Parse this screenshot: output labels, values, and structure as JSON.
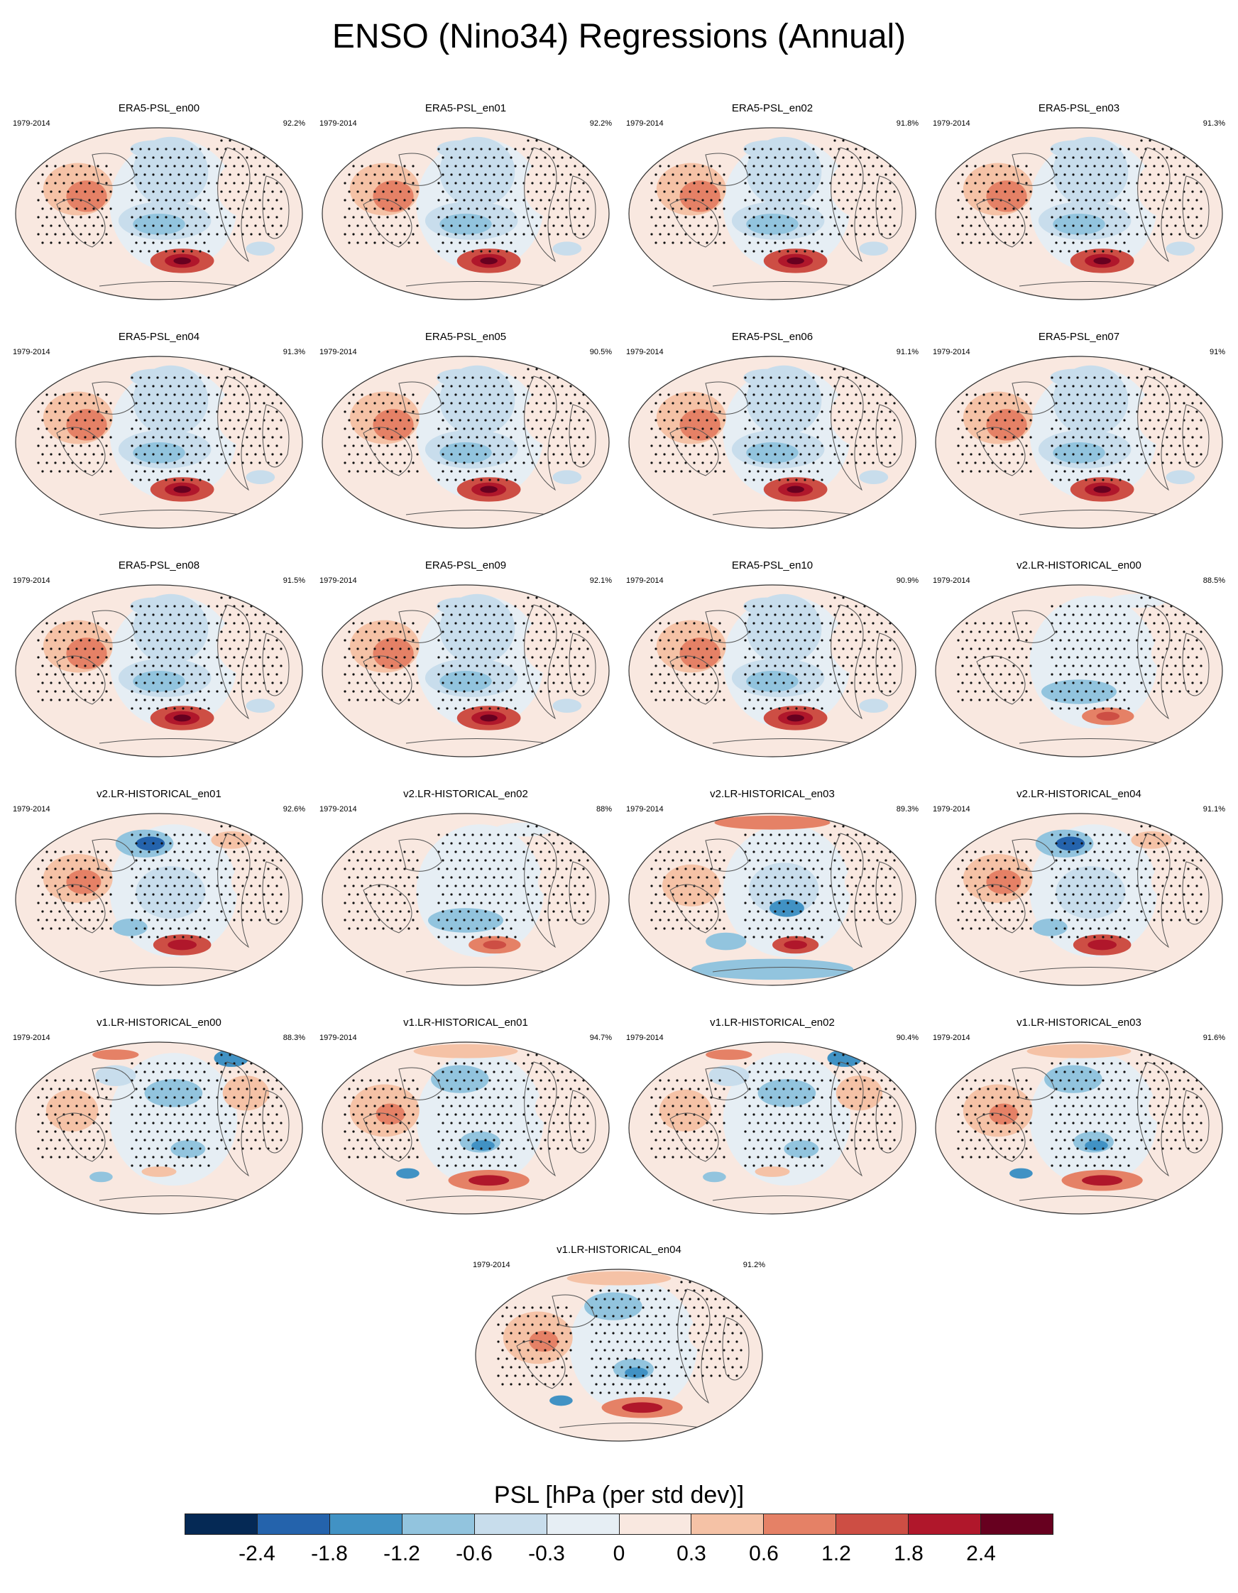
{
  "title": "ENSO (Nino34) Regressions (Annual)",
  "colorbar": {
    "title": "PSL [hPa (per std dev)]",
    "colors": [
      "#052955",
      "#2463ac",
      "#4192c4",
      "#92c4de",
      "#c8ddec",
      "#e6eef4",
      "#f9e8e0",
      "#f5c2a6",
      "#e58166",
      "#cd4e44",
      "#b0172b",
      "#67001f"
    ],
    "labels": [
      "-2.4",
      "-1.8",
      "-1.2",
      "-0.6",
      "-0.3",
      "0",
      "0.3",
      "0.6",
      "1.2",
      "1.8",
      "2.4"
    ]
  },
  "panels": [
    {
      "title": "ERA5-PSL_en00",
      "period": "1979-2014",
      "pct": "92.2%",
      "style": "era"
    },
    {
      "title": "ERA5-PSL_en01",
      "period": "1979-2014",
      "pct": "92.2%",
      "style": "era"
    },
    {
      "title": "ERA5-PSL_en02",
      "period": "1979-2014",
      "pct": "91.8%",
      "style": "era"
    },
    {
      "title": "ERA5-PSL_en03",
      "period": "1979-2014",
      "pct": "91.3%",
      "style": "era"
    },
    {
      "title": "ERA5-PSL_en04",
      "period": "1979-2014",
      "pct": "91.3%",
      "style": "era"
    },
    {
      "title": "ERA5-PSL_en05",
      "period": "1979-2014",
      "pct": "90.5%",
      "style": "era"
    },
    {
      "title": "ERA5-PSL_en06",
      "period": "1979-2014",
      "pct": "91.1%",
      "style": "era"
    },
    {
      "title": "ERA5-PSL_en07",
      "period": "1979-2014",
      "pct": "91%",
      "style": "era"
    },
    {
      "title": "ERA5-PSL_en08",
      "period": "1979-2014",
      "pct": "91.5%",
      "style": "era"
    },
    {
      "title": "ERA5-PSL_en09",
      "period": "1979-2014",
      "pct": "92.1%",
      "style": "era"
    },
    {
      "title": "ERA5-PSL_en10",
      "period": "1979-2014",
      "pct": "90.9%",
      "style": "era"
    },
    {
      "title": "v2.LR-HISTORICAL_en00",
      "period": "1979-2014",
      "pct": "88.5%",
      "style": "v2a"
    },
    {
      "title": "v2.LR-HISTORICAL_en01",
      "period": "1979-2014",
      "pct": "92.6%",
      "style": "v2b"
    },
    {
      "title": "v2.LR-HISTORICAL_en02",
      "period": "1979-2014",
      "pct": "88%",
      "style": "v2a"
    },
    {
      "title": "v2.LR-HISTORICAL_en03",
      "period": "1979-2014",
      "pct": "89.3%",
      "style": "v2c"
    },
    {
      "title": "v2.LR-HISTORICAL_en04",
      "period": "1979-2014",
      "pct": "91.1%",
      "style": "v2b"
    },
    {
      "title": "v1.LR-HISTORICAL_en00",
      "period": "1979-2014",
      "pct": "88.3%",
      "style": "v1a"
    },
    {
      "title": "v1.LR-HISTORICAL_en01",
      "period": "1979-2014",
      "pct": "94.7%",
      "style": "v1b"
    },
    {
      "title": "v1.LR-HISTORICAL_en02",
      "period": "1979-2014",
      "pct": "90.4%",
      "style": "v1a"
    },
    {
      "title": "v1.LR-HISTORICAL_en03",
      "period": "1979-2014",
      "pct": "91.6%",
      "style": "v1b"
    },
    {
      "title": "v1.LR-HISTORICAL_en04",
      "period": "1979-2014",
      "pct": "91.2%",
      "style": "v1b"
    }
  ]
}
